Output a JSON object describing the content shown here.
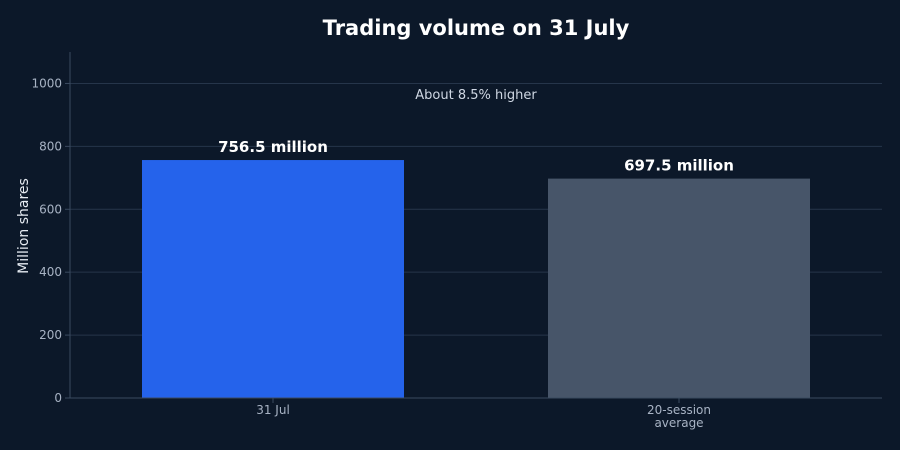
{
  "chart_data": {
    "type": "bar",
    "title": "Trading volume on 31 July",
    "ylabel": "Million shares",
    "xlabel": "",
    "ylim": [
      0,
      1100
    ],
    "yticks": [
      0,
      200,
      400,
      600,
      800,
      1000
    ],
    "grid": true,
    "categories": [
      [
        "31 Jul"
      ],
      [
        "20-session",
        "average"
      ]
    ],
    "values": [
      756.5,
      697.5
    ],
    "value_labels": [
      "756.5 million",
      "697.5 million"
    ],
    "colors": [
      "#2563eb",
      "#475569"
    ],
    "annotation": "About 8.5% higher"
  }
}
